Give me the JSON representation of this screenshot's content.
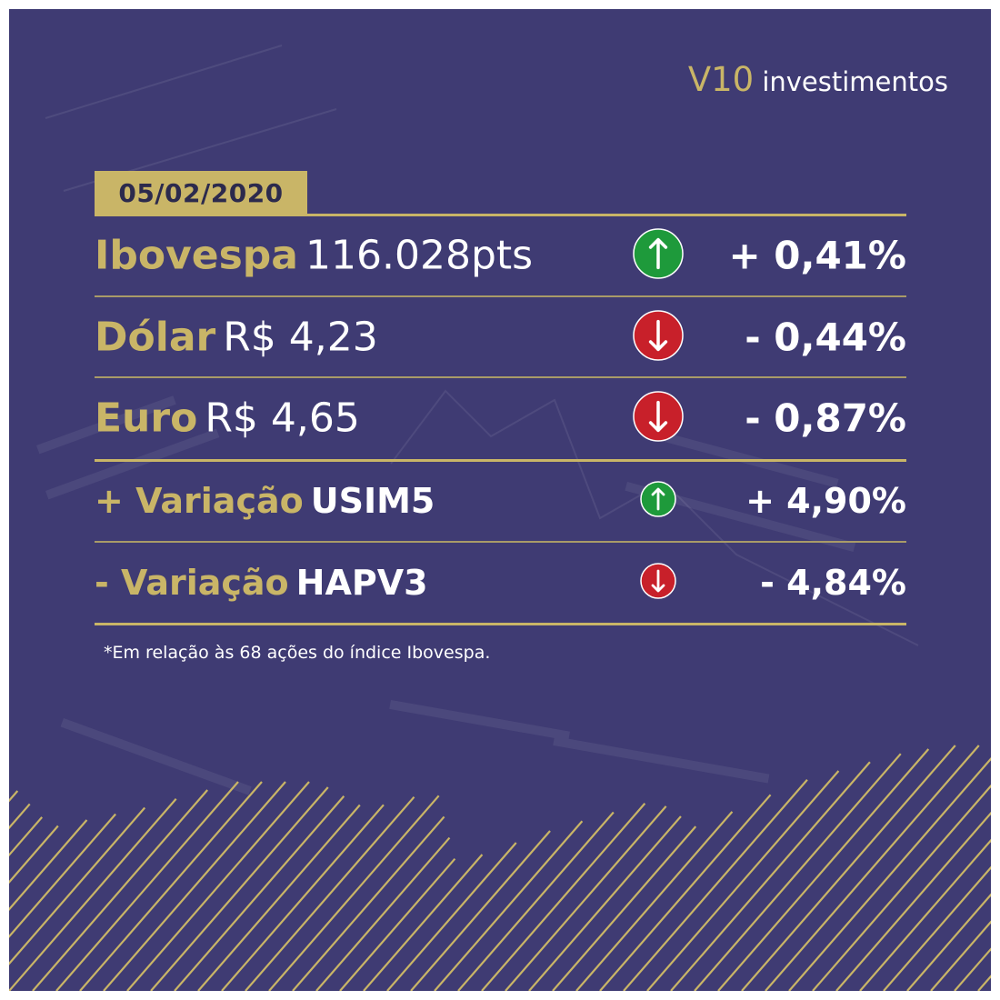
{
  "brand": {
    "name": "V10",
    "suffix": "investimentos"
  },
  "date": "05/02/2020",
  "rows": [
    {
      "name": "Ibovespa",
      "value": "116.028pts",
      "direction": "up",
      "change": "+ 0,41%"
    },
    {
      "name": "Dólar",
      "value": "R$ 4,23",
      "direction": "down",
      "change": "- 0,44%"
    },
    {
      "name": "Euro",
      "value": "R$ 4,65",
      "direction": "down",
      "change": "- 0,87%"
    },
    {
      "name": "+ Variação",
      "value": "USIM5",
      "direction": "up",
      "change": "+ 4,90%"
    },
    {
      "name": "- Variação",
      "value": "HAPV3",
      "direction": "down",
      "change": "- 4,84%"
    }
  ],
  "footnote": "*Em relação às 68 ações do índice Ibovespa.",
  "colors": {
    "background": "#3f3b73",
    "gold": "#c9b567",
    "up": "#1e9a3b",
    "down": "#c8202a"
  }
}
